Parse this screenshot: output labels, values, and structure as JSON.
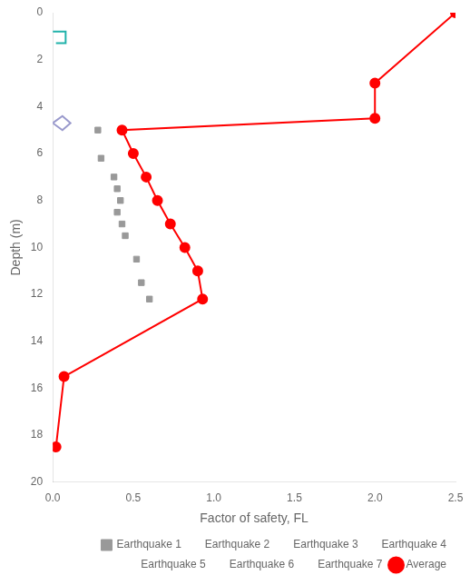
{
  "chart_data": {
    "type": "line",
    "xlabel": "Factor of safety, FL",
    "ylabel": "Depth (m)",
    "xlim": [
      0,
      2.5
    ],
    "ylim": [
      20,
      0
    ],
    "xticks": [
      {
        "value": 0,
        "label": "0.0"
      },
      0.5,
      {
        "value": 1.0,
        "label": "1.0"
      },
      1.5,
      {
        "value": 2.0,
        "label": "2.0"
      },
      2.5
    ],
    "yticks": [
      0,
      2,
      4,
      6,
      8,
      10,
      12,
      14,
      16,
      18,
      20
    ],
    "grid": false,
    "legend": "lower right",
    "series": [
      {
        "type": "line",
        "marker": "none",
        "color": "#20B2AA",
        "x": [
          0.0,
          0.08,
          0.08,
          0.02
        ],
        "values": [
          0.8,
          0.8,
          1.3,
          1.3
        ]
      },
      {
        "type": "line",
        "marker": "none",
        "color": "#9999CC",
        "x": [
          0.0,
          0.06,
          0.11,
          0.06,
          0.0
        ],
        "values": [
          4.7,
          4.4,
          4.7,
          5.0,
          4.7
        ]
      },
      {
        "name": "Earthquake 1",
        "type": "scatter",
        "marker": "square",
        "color": "#999999",
        "x": [
          0.28,
          0.3,
          0.38,
          0.4,
          0.42,
          0.4,
          0.43,
          0.45,
          0.52,
          0.55,
          0.6
        ],
        "values": [
          5.0,
          6.2,
          7.0,
          7.5,
          8.0,
          8.5,
          9.0,
          9.5,
          10.5,
          11.5,
          12.2
        ]
      },
      {
        "name": "Earthquake 2",
        "x": [],
        "values": []
      },
      {
        "name": "Earthquake 3",
        "x": [],
        "values": []
      },
      {
        "name": "Earthquake 4",
        "x": [],
        "values": []
      },
      {
        "name": "Earthquake 5",
        "x": [],
        "values": []
      },
      {
        "name": "Earthquake 6",
        "x": [],
        "values": []
      },
      {
        "name": "Earthquake 7",
        "x": [],
        "values": []
      },
      {
        "name": "Average",
        "type": "line",
        "marker": "circle",
        "color": "#FF0000",
        "x": [
          2.5,
          2.0,
          2.0,
          0.43,
          0.5,
          0.58,
          0.65,
          0.73,
          0.82,
          0.9,
          0.93,
          0.07,
          0.02
        ],
        "values": [
          0.0,
          3.0,
          4.5,
          5.0,
          6.0,
          7.0,
          8.0,
          9.0,
          10.0,
          11.0,
          12.2,
          15.5,
          18.5
        ]
      }
    ]
  }
}
